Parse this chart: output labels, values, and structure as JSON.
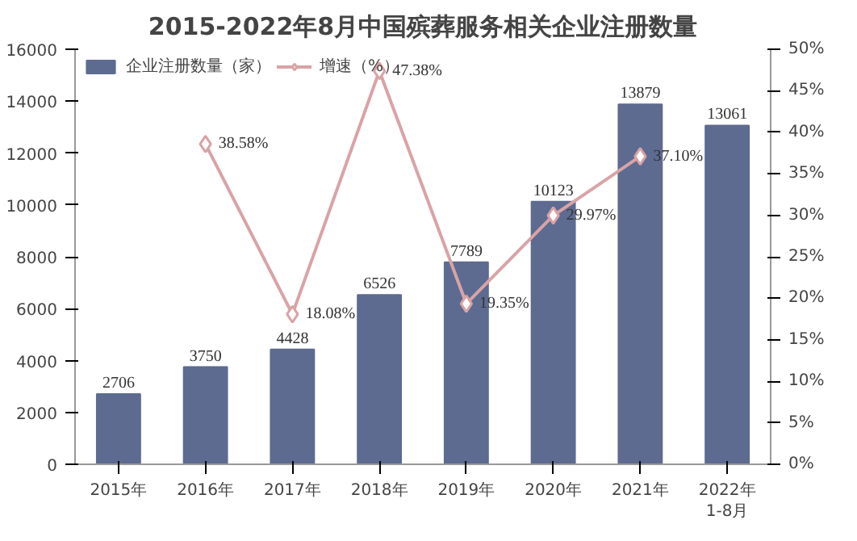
{
  "chart_data": {
    "type": "bar",
    "title": "2015-2022年8月中国殡葬服务相关企业注册数量",
    "categories": [
      "2015年",
      "2016年",
      "2017年",
      "2018年",
      "2019年",
      "2020年",
      "2021年",
      "2022年\n1-8月"
    ],
    "series": [
      {
        "name": "企业注册数量（家）",
        "color": "#5d6b91",
        "values": [
          2706,
          3750,
          4428,
          6526,
          7789,
          10123,
          13879,
          13061
        ],
        "value_labels": [
          "2706",
          "3750",
          "4428",
          "6526",
          "7789",
          "10123",
          "13879",
          "13061"
        ]
      },
      {
        "name": "增速（%）",
        "type": "line",
        "axis": "y2",
        "color": "#d9a3a6",
        "marker": "diamond",
        "values": [
          null,
          38.58,
          18.08,
          47.38,
          19.35,
          29.97,
          37.1,
          null
        ],
        "value_labels": [
          null,
          "38.58%",
          "18.08%",
          "47.38%",
          "19.35%",
          "29.97%",
          "37.10%",
          null
        ]
      }
    ],
    "ylim": [
      0,
      16000
    ],
    "yticks": [
      0,
      2000,
      4000,
      6000,
      8000,
      10000,
      12000,
      14000,
      16000
    ],
    "y2lim": [
      0,
      50
    ],
    "y2ticks": [
      {
        "value": 0,
        "label": "0%"
      },
      {
        "value": 5,
        "label": "5%"
      },
      {
        "value": 10,
        "label": "10%"
      },
      {
        "value": 15,
        "label": "15%"
      },
      {
        "value": 20,
        "label": "20%"
      },
      {
        "value": 25,
        "label": "25%"
      },
      {
        "value": 30,
        "label": "30%"
      },
      {
        "value": 35,
        "label": "35%"
      },
      {
        "value": 40,
        "label": "40%"
      },
      {
        "value": 45,
        "label": "45%"
      },
      {
        "value": 50,
        "label": "50%"
      }
    ],
    "legend": "top left",
    "grid": false
  }
}
